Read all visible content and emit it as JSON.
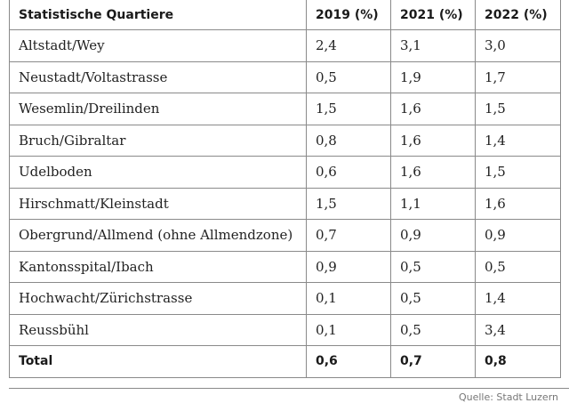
{
  "table": {
    "headers": [
      "Statistische Quartiere",
      "2019 (%)",
      "2021 (%)",
      "2022 (%)"
    ],
    "rows": [
      [
        "Altstadt/Wey",
        "2,4",
        "3,1",
        "3,0"
      ],
      [
        "Neustadt/Voltastrasse",
        "0,5",
        "1,9",
        "1,7"
      ],
      [
        "Wesemlin/Dreilinden",
        "1,5",
        "1,6",
        "1,5"
      ],
      [
        "Bruch/Gibraltar",
        "0,8",
        "1,6",
        "1,4"
      ],
      [
        "Udelboden",
        "0,6",
        "1,6",
        "1,5"
      ],
      [
        "Hirschmatt/Kleinstadt",
        "1,5",
        "1,1",
        "1,6"
      ],
      [
        "Obergrund/Allmend (ohne Allmendzone)",
        "0,7",
        "0,9",
        "0,9"
      ],
      [
        "Kantonsspital/Ibach",
        "0,9",
        "0,5",
        "0,5"
      ],
      [
        "Hochwacht/Zürichstrasse",
        "0,1",
        "0,5",
        "1,4"
      ],
      [
        "Reussbühl",
        "0,1",
        "0,5",
        "3,4"
      ]
    ],
    "total": [
      "Total",
      "0,6",
      "0,7",
      "0,8"
    ]
  },
  "source": "Quelle: Stadt Luzern"
}
